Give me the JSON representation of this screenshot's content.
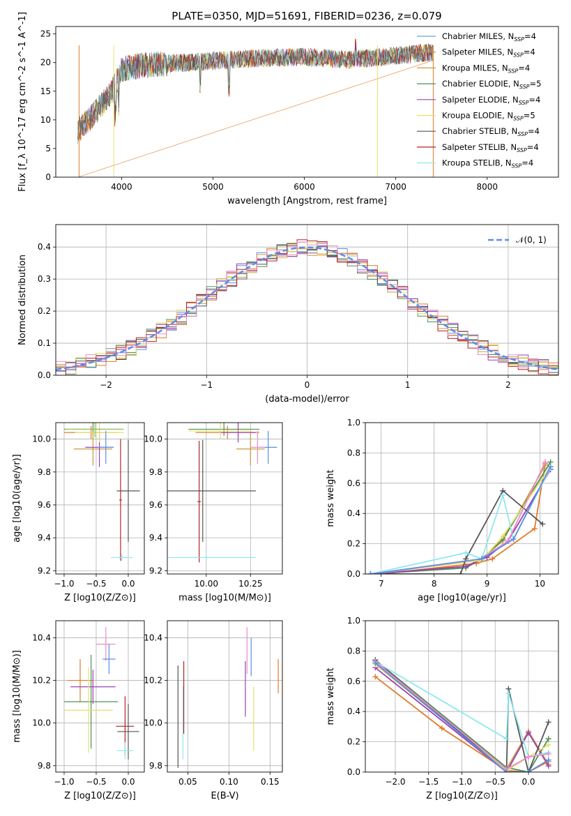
{
  "title": "PLATE=0350, MJD=51691, FIBERID=0236, z=0.079",
  "colors": [
    "#6f9fc7",
    "#e07b28",
    "#c99a3c",
    "#4f8f5a",
    "#9b3fb5",
    "#e4e06a",
    "#555555",
    "#b22222",
    "#8ee8ee",
    "#e88ec8",
    "#5b8de8",
    "#8dbf4c"
  ],
  "chart_data": [
    {
      "type": "line",
      "name": "spectrum",
      "xlabel": "wavelength [Angstrom, rest frame]",
      "ylabel": "Flux [f_λ 10^-17 erg cm^-2 s^-1 A^-1]",
      "xlim": [
        3280,
        8780
      ],
      "ylim": [
        0,
        26.3
      ],
      "xticks": [
        "4000",
        "5000",
        "6000",
        "7000",
        "8000"
      ],
      "yticks": [
        "0",
        "5",
        "10",
        "15",
        "20",
        "25"
      ],
      "continuum": {
        "x": [
          3520,
          3700,
          3900,
          4000,
          4200,
          4500,
          5000,
          5500,
          6000,
          6500,
          7000,
          7400
        ],
        "y": [
          8,
          11,
          15,
          18.8,
          19.5,
          19.8,
          20.3,
          20.8,
          21.0,
          20.5,
          21.2,
          21.8
        ]
      },
      "legend": [
        {
          "label": "Chabrier MILES, N",
          "sub": "SSP",
          "suffix": "=4"
        },
        {
          "label": "Salpeter MILES, N",
          "sub": "SSP",
          "suffix": "=4"
        },
        {
          "label": "Kroupa MILES, N",
          "sub": "SSP",
          "suffix": "=4"
        },
        {
          "label": "Chabrier ELODIE, N",
          "sub": "SSP",
          "suffix": "=5"
        },
        {
          "label": "Salpeter ELODIE, N",
          "sub": "SSP",
          "suffix": "=4"
        },
        {
          "label": "Kroupa ELODIE, N",
          "sub": "SSP",
          "suffix": "=5"
        },
        {
          "label": "Chabrier STELIB, N",
          "sub": "SSP",
          "suffix": "=4"
        },
        {
          "label": "Salpeter STELIB, N",
          "sub": "SSP",
          "suffix": "=4"
        },
        {
          "label": "Kroupa STELIB, N",
          "sub": "SSP",
          "suffix": "=4"
        }
      ]
    },
    {
      "type": "histogram",
      "name": "residuals",
      "xlabel": "(data-model)/error",
      "ylabel": "Normed distribution",
      "xlim": [
        -2.5,
        2.5
      ],
      "ylim": [
        0,
        0.47
      ],
      "xticks": [
        "−2",
        "−1",
        "0",
        "1",
        "2"
      ],
      "yticks": [
        "0.0",
        "0.1",
        "0.2",
        "0.3",
        "0.4"
      ],
      "legend": "𝒩(0, 1)",
      "bin_width": 0.1
    },
    {
      "type": "errorbar",
      "name": "age-vs-Z",
      "xlabel": "Z [log10(Z/Z⊙)]",
      "ylabel": "age  [log10(age/yr)]",
      "xlim": [
        -1.13,
        0.25
      ],
      "ylim": [
        9.18,
        10.1
      ],
      "xticks": [
        "−1.0",
        "−0.5",
        "0.0"
      ],
      "yticks": [
        "9.2",
        "9.4",
        "9.6",
        "9.8",
        "10.0"
      ],
      "points": [
        {
          "x": -0.55,
          "y": 10.06,
          "xerr": 0.45,
          "yerr": 0.04,
          "c": 3
        },
        {
          "x": -0.58,
          "y": 10.04,
          "xerr": 0.42,
          "yerr": 0.04,
          "c": 1
        },
        {
          "x": -0.55,
          "y": 9.94,
          "xerr": 0.3,
          "yerr": 0.1,
          "c": 2
        },
        {
          "x": -0.45,
          "y": 9.95,
          "xerr": 0.22,
          "yerr": 0.12,
          "c": 4
        },
        {
          "x": -0.45,
          "y": 10.04,
          "xerr": 0.38,
          "yerr": 0.06,
          "c": 5
        },
        {
          "x": -0.52,
          "y": 10.06,
          "xerr": 0.45,
          "yerr": 0.05,
          "c": 11
        },
        {
          "x": -0.35,
          "y": 9.95,
          "xerr": 0.12,
          "yerr": 0.1,
          "c": 10
        },
        {
          "x": 0.0,
          "y": 9.685,
          "xerr": 0.18,
          "yerr": 0.31,
          "c": 6
        },
        {
          "x": -0.12,
          "y": 9.63,
          "xerr": 0.02,
          "yerr": 0.37,
          "c": 7
        },
        {
          "x": -0.1,
          "y": 9.28,
          "xerr": 0.17,
          "yerr": 0.02,
          "c": 8
        }
      ]
    },
    {
      "type": "errorbar",
      "name": "age-vs-mass",
      "xlabel": "mass [log10(M/M⊙)]",
      "ylabel": "",
      "xlim": [
        9.78,
        10.43
      ],
      "ylim": [
        9.18,
        10.1
      ],
      "xticks": [
        "10.00",
        "10.25"
      ],
      "yticks": [
        "9.2",
        "9.4",
        "9.6",
        "9.8",
        "10.0"
      ],
      "points": [
        {
          "x": 10.1,
          "y": 10.06,
          "xerr": 0.2,
          "yerr": 0.04,
          "c": 3
        },
        {
          "x": 10.12,
          "y": 10.04,
          "xerr": 0.18,
          "yerr": 0.04,
          "c": 1
        },
        {
          "x": 10.25,
          "y": 9.94,
          "xerr": 0.08,
          "yerr": 0.1,
          "c": 2
        },
        {
          "x": 10.18,
          "y": 10.04,
          "xerr": 0.1,
          "yerr": 0.06,
          "c": 4
        },
        {
          "x": 10.08,
          "y": 10.05,
          "xerr": 0.18,
          "yerr": 0.05,
          "c": 5
        },
        {
          "x": 10.35,
          "y": 9.95,
          "xerr": 0.05,
          "yerr": 0.1,
          "c": 10
        },
        {
          "x": 10.29,
          "y": 9.95,
          "xerr": 0.04,
          "yerr": 0.1,
          "c": 9
        },
        {
          "x": 9.98,
          "y": 9.685,
          "xerr": 0.3,
          "yerr": 0.31,
          "c": 6
        },
        {
          "x": 9.96,
          "y": 9.62,
          "xerr": 0.01,
          "yerr": 0.37,
          "c": 7
        },
        {
          "x": 10.0,
          "y": 9.28,
          "xerr": 0.28,
          "yerr": 0.02,
          "c": 8
        }
      ]
    },
    {
      "type": "line",
      "name": "mass-weight-vs-age",
      "xlabel": "age  [log10(age/yr)]",
      "ylabel": "mass weight",
      "xlim": [
        6.7,
        10.35
      ],
      "ylim": [
        0,
        1.0
      ],
      "xticks": [
        "7",
        "8",
        "9",
        "10"
      ],
      "yticks": [
        "0.0",
        "0.2",
        "0.4",
        "0.6",
        "0.8",
        "1.0"
      ],
      "series": [
        {
          "c": 1,
          "x": [
            6.8,
            7.0,
            8.8,
            9.1,
            9.9,
            10.1
          ],
          "y": [
            0.0,
            0.0,
            0.07,
            0.1,
            0.3,
            0.73
          ]
        },
        {
          "c": 2,
          "x": [
            6.8,
            8.6,
            8.9,
            9.3,
            10.1
          ],
          "y": [
            0.0,
            0.05,
            0.1,
            0.22,
            0.72
          ]
        },
        {
          "c": 3,
          "x": [
            6.8,
            8.6,
            8.9,
            9.3,
            10.2
          ],
          "y": [
            0.0,
            0.04,
            0.1,
            0.23,
            0.74
          ]
        },
        {
          "c": 4,
          "x": [
            6.8,
            8.6,
            9.0,
            9.4,
            10.2
          ],
          "y": [
            0.0,
            0.05,
            0.11,
            0.22,
            0.69
          ]
        },
        {
          "c": 5,
          "x": [
            6.8,
            8.9,
            9.3,
            10.2
          ],
          "y": [
            0.0,
            0.09,
            0.25,
            0.71
          ]
        },
        {
          "c": 6,
          "x": [
            6.8,
            8.5,
            8.6,
            9.3,
            10.05
          ],
          "y": [
            0.0,
            0.0,
            0.1,
            0.55,
            0.33
          ]
        },
        {
          "c": 8,
          "x": [
            6.8,
            8.6,
            8.9,
            9.3,
            9.5,
            10.2
          ],
          "y": [
            0.0,
            0.14,
            0.1,
            0.52,
            0.23,
            0.7
          ]
        },
        {
          "c": 9,
          "x": [
            6.8,
            8.9,
            9.4,
            10.1
          ],
          "y": [
            0.0,
            0.1,
            0.22,
            0.74
          ]
        },
        {
          "c": 10,
          "x": [
            6.8,
            8.9,
            9.5,
            10.2
          ],
          "y": [
            0.0,
            0.1,
            0.23,
            0.71
          ]
        }
      ]
    },
    {
      "type": "errorbar",
      "name": "mass-vs-Z",
      "xlabel": "Z [log10(Z/Z⊙)]",
      "ylabel": "mass [log10(M/M⊙)]",
      "xlim": [
        -1.13,
        0.25
      ],
      "ylim": [
        9.77,
        10.48
      ],
      "xticks": [
        "−1.0",
        "−0.5",
        "0.0"
      ],
      "yticks": [
        "9.8",
        "10.0",
        "10.2",
        "10.4"
      ],
      "points": [
        {
          "x": -0.35,
          "y": 10.37,
          "xerr": 0.15,
          "yerr": 0.08,
          "c": 9
        },
        {
          "x": -0.3,
          "y": 10.3,
          "xerr": 0.1,
          "yerr": 0.07,
          "c": 10
        },
        {
          "x": -0.75,
          "y": 10.2,
          "xerr": 0.2,
          "yerr": 0.1,
          "c": 1
        },
        {
          "x": -0.55,
          "y": 10.17,
          "xerr": 0.35,
          "yerr": 0.08,
          "c": 4
        },
        {
          "x": -0.58,
          "y": 10.1,
          "xerr": 0.42,
          "yerr": 0.22,
          "c": 3
        },
        {
          "x": -0.62,
          "y": 10.06,
          "xerr": 0.38,
          "yerr": 0.2,
          "c": 5
        },
        {
          "x": -0.05,
          "y": 9.985,
          "xerr": 0.14,
          "yerr": 0.14,
          "c": 7
        },
        {
          "x": 0.0,
          "y": 9.96,
          "xerr": 0.17,
          "yerr": 0.13,
          "c": 6
        },
        {
          "x": -0.05,
          "y": 9.87,
          "xerr": 0.13,
          "yerr": 0.04,
          "c": 8
        }
      ]
    },
    {
      "type": "errorbar",
      "name": "mass-vs-EBV",
      "xlabel": "E(B-V)",
      "ylabel": "",
      "xlim": [
        0.025,
        0.165
      ],
      "ylim": [
        9.77,
        10.48
      ],
      "xticks": [
        "0.05",
        "0.10",
        "0.15"
      ],
      "yticks": [
        "9.8",
        "10.0",
        "10.2",
        "10.4"
      ],
      "points": [
        {
          "x": 0.122,
          "y": 10.34,
          "xerr": 0,
          "yerr": 0.11,
          "c": 9
        },
        {
          "x": 0.127,
          "y": 10.31,
          "xerr": 0,
          "yerr": 0.09,
          "c": 10
        },
        {
          "x": 0.16,
          "y": 10.22,
          "xerr": 0,
          "yerr": 0.08,
          "c": 1
        },
        {
          "x": 0.12,
          "y": 10.16,
          "xerr": 0,
          "yerr": 0.13,
          "c": 4
        },
        {
          "x": 0.13,
          "y": 10.02,
          "xerr": 0,
          "yerr": 0.15,
          "c": 5
        },
        {
          "x": 0.045,
          "y": 10.12,
          "xerr": 0,
          "yerr": 0.17,
          "c": 7
        },
        {
          "x": 0.038,
          "y": 10.03,
          "xerr": 0,
          "yerr": 0.24,
          "c": 6
        },
        {
          "x": 0.044,
          "y": 10.0,
          "xerr": 0,
          "yerr": 0.17,
          "c": 8
        }
      ]
    },
    {
      "type": "line",
      "name": "mass-weight-vs-Z",
      "xlabel": "Z [log10(Z/Z⊙)]",
      "ylabel": "mass weight",
      "xlim": [
        -2.45,
        0.45
      ],
      "ylim": [
        0,
        1.0
      ],
      "xticks": [
        "−2.0",
        "−1.5",
        "−1.0",
        "−0.5",
        "0.0"
      ],
      "yticks": [
        "0.0",
        "0.2",
        "0.4",
        "0.6",
        "0.8",
        "1.0"
      ],
      "series": [
        {
          "c": 1,
          "x": [
            -2.3,
            -1.3,
            -0.33,
            0.0,
            0.3
          ],
          "y": [
            0.63,
            0.29,
            0.01,
            0.0,
            0.07
          ]
        },
        {
          "c": 2,
          "x": [
            -2.3,
            -0.33,
            0.0,
            0.3
          ],
          "y": [
            0.72,
            0.02,
            0.27,
            0.05
          ]
        },
        {
          "c": 3,
          "x": [
            -2.3,
            -0.33,
            0.0,
            0.3
          ],
          "y": [
            0.74,
            0.03,
            0.0,
            0.22
          ]
        },
        {
          "c": 4,
          "x": [
            -2.3,
            -0.33,
            0.0,
            0.3
          ],
          "y": [
            0.69,
            0.0,
            0.26,
            0.04
          ]
        },
        {
          "c": 5,
          "x": [
            -2.3,
            -0.33,
            0.0,
            0.3
          ],
          "y": [
            0.71,
            0.01,
            0.1,
            0.18
          ]
        },
        {
          "c": 6,
          "x": [
            -2.3,
            -0.33,
            -0.3,
            0.0,
            0.3
          ],
          "y": [
            0.74,
            0.0,
            0.55,
            0.0,
            0.33
          ]
        },
        {
          "c": 8,
          "x": [
            -2.3,
            -0.33,
            -0.3,
            0.0,
            0.3
          ],
          "y": [
            0.73,
            0.22,
            0.52,
            0.1,
            0.13
          ]
        },
        {
          "c": 9,
          "x": [
            -2.3,
            -0.33,
            0.0,
            0.3
          ],
          "y": [
            0.73,
            0.02,
            0.1,
            0.12
          ]
        },
        {
          "c": 10,
          "x": [
            -2.3,
            -0.33,
            0.0,
            0.3
          ],
          "y": [
            0.72,
            0.0,
            0.0,
            0.08
          ]
        }
      ]
    }
  ]
}
